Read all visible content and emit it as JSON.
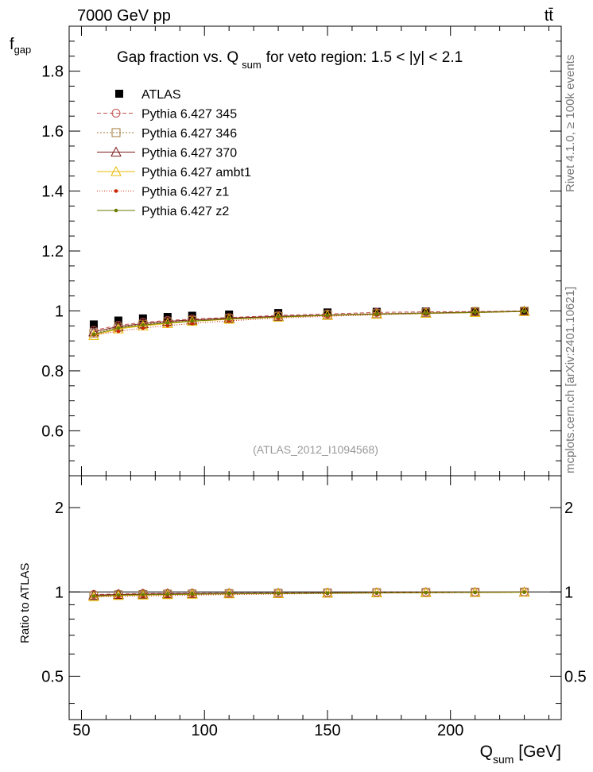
{
  "header": {
    "energy_label": "7000 GeV pp",
    "process_label": "tt̄",
    "side_rivet": "Rivet 4.1.0, ≥ 100k events",
    "side_mcplots": "mcplots.cern.ch [arXiv:2401.10621]",
    "analysis_id": "(ATLAS_2012_I1094568)"
  },
  "title": {
    "main": "Gap fraction vs. Q",
    "sub": "sum",
    "rest": "for veto region: 1.5 < |y| < 2.1"
  },
  "axes": {
    "y_main": "f",
    "y_main_sub": "gap",
    "y_ratio": "Ratio to ATLAS",
    "x_main": "Q",
    "x_sub": "sum",
    "x_unit": " [GeV]"
  },
  "colors": {
    "atlas": "#000000",
    "p345": "#c0504d",
    "p346": "#a07a3a",
    "p370": "#7a1a1a",
    "ambt1": "#e8b800",
    "z1": "#cc2200",
    "z2": "#6b7a00"
  },
  "chart_data": {
    "type": "scatter",
    "x": [
      55,
      65,
      75,
      85,
      95,
      110,
      130,
      150,
      170,
      190,
      210,
      230
    ],
    "xlim": [
      45,
      245
    ],
    "main_ylim": [
      0.45,
      1.95
    ],
    "main_yticks": [
      0.6,
      0.8,
      1.0,
      1.2,
      1.4,
      1.6,
      1.8
    ],
    "main_yticklabels": [
      "0.6",
      "0.8",
      "1",
      "1.2",
      "1.4",
      "1.6",
      "1.8"
    ],
    "xticks": [
      50,
      100,
      150,
      200
    ],
    "xticklabels": [
      "50",
      "100",
      "150",
      "200"
    ],
    "ratio_ylim": [
      0.35,
      2.6
    ],
    "ratio_yticks": [
      0.5,
      1,
      2
    ],
    "ratio_yticklabels": [
      "0.5",
      "1",
      "2"
    ],
    "data": {
      "name": "ATLAS",
      "values": [
        0.955,
        0.968,
        0.975,
        0.98,
        0.984,
        0.988,
        0.993,
        0.995,
        0.997,
        0.998,
        0.999,
        1.0
      ]
    },
    "series": [
      {
        "name": "Pythia 6.427 345",
        "key": "p345",
        "marker": "circle",
        "dash": "5,3",
        "values": [
          0.935,
          0.952,
          0.962,
          0.968,
          0.973,
          0.978,
          0.985,
          0.99,
          0.995,
          0.997,
          0.998,
          1.0
        ]
      },
      {
        "name": "Pythia 6.427 346",
        "key": "p346",
        "marker": "square",
        "dash": "2,2",
        "values": [
          0.925,
          0.945,
          0.955,
          0.963,
          0.968,
          0.975,
          0.982,
          0.987,
          0.991,
          0.994,
          0.997,
          0.999
        ]
      },
      {
        "name": "Pythia 6.427 370",
        "key": "p370",
        "marker": "triangle",
        "dash": "",
        "values": [
          0.93,
          0.948,
          0.958,
          0.965,
          0.97,
          0.976,
          0.982,
          0.986,
          0.99,
          0.993,
          0.996,
          0.999
        ]
      },
      {
        "name": "Pythia 6.427 ambt1",
        "key": "ambt1",
        "marker": "triangle",
        "dash": "",
        "values": [
          0.918,
          0.94,
          0.95,
          0.958,
          0.965,
          0.972,
          0.979,
          0.985,
          0.989,
          0.992,
          0.995,
          0.998
        ]
      },
      {
        "name": "Pythia 6.427 z1",
        "key": "z1",
        "marker": "dot",
        "dash": "1,2",
        "values": [
          0.92,
          0.932,
          0.943,
          0.951,
          0.958,
          0.967,
          0.976,
          0.982,
          0.987,
          0.991,
          0.994,
          0.998
        ]
      },
      {
        "name": "Pythia 6.427 z2",
        "key": "z2",
        "marker": "dot",
        "dash": "",
        "values": [
          0.922,
          0.943,
          0.953,
          0.96,
          0.966,
          0.973,
          0.98,
          0.985,
          0.989,
          0.992,
          0.995,
          0.998
        ]
      }
    ],
    "legend_position": "top-left"
  }
}
